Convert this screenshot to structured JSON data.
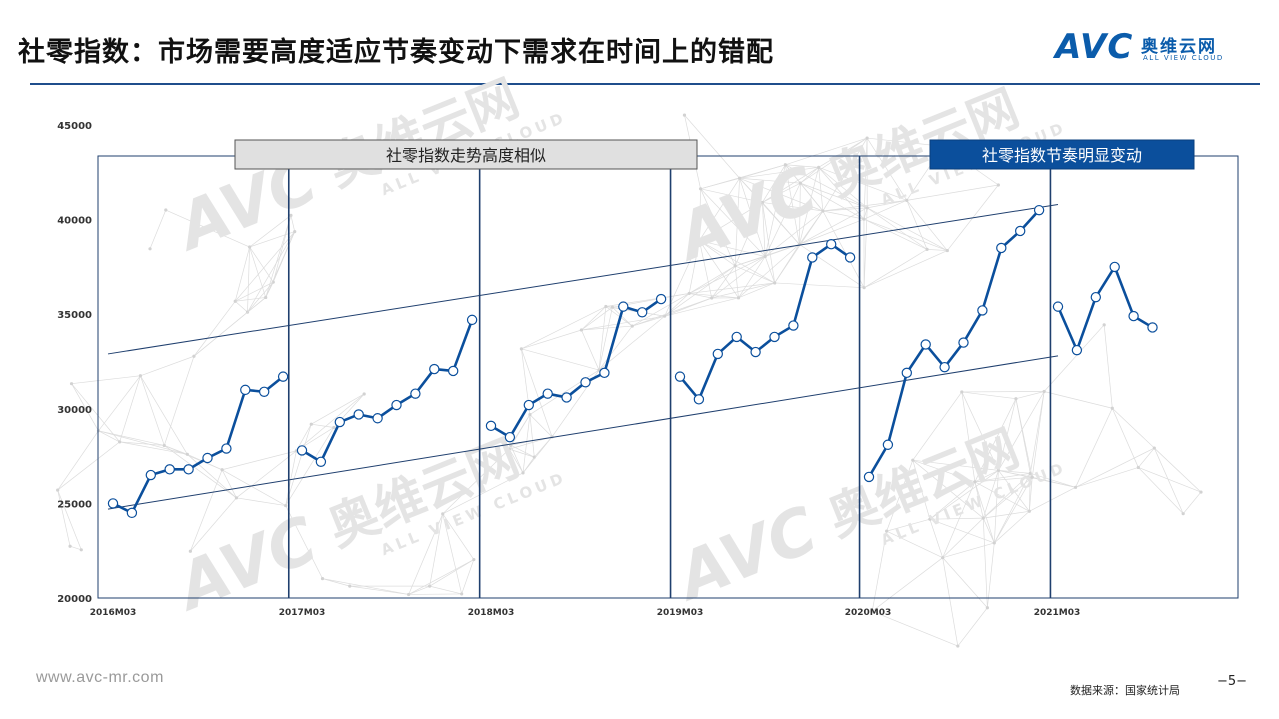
{
  "header": {
    "title": "社零指数：市场需要高度适应节奏变动下需求在时间上的错配",
    "logo_main": "AVC",
    "logo_cn": "奥维云网",
    "logo_en": "ALL VIEW CLOUD"
  },
  "watermark": {
    "main": "AVC",
    "cn": "奥维云网",
    "en": "ALL VIEW CLOUD"
  },
  "footer": {
    "url": "www.avc-mr.com",
    "source": "数据来源：国家统计局",
    "page": "−5−"
  },
  "colors": {
    "line": "#0b4f9c",
    "frame": "#1f3f6e",
    "accent_box": "#0b4f9c"
  },
  "chart_data": {
    "type": "line",
    "title": "",
    "xlabel": "",
    "ylabel": "",
    "ylim": [
      20000,
      45000
    ],
    "yticks": [
      20000,
      25000,
      30000,
      35000,
      40000,
      45000
    ],
    "xtick_labels": [
      "2016M03",
      "2017M03",
      "2018M03",
      "2019M03",
      "2020M03",
      "2021M03"
    ],
    "grid": false,
    "legend": "none",
    "annotations": [
      {
        "text": "社零指数走势高度相似",
        "style": "gray"
      },
      {
        "text": "社零指数节奏明显变动",
        "style": "blue"
      }
    ],
    "segments": [
      {
        "year": "2016",
        "values": [
          25000,
          24500,
          26500,
          26800,
          26800,
          27400,
          27900,
          31000,
          30900,
          31700
        ]
      },
      {
        "year": "2017",
        "values": [
          27800,
          27200,
          29300,
          29700,
          29500,
          30200,
          30800,
          32100,
          32000,
          34700
        ]
      },
      {
        "year": "2018",
        "values": [
          29100,
          28500,
          30200,
          30800,
          30600,
          31400,
          31900,
          35400,
          35100,
          35800
        ]
      },
      {
        "year": "2019",
        "values": [
          31700,
          30500,
          32900,
          33800,
          33000,
          33800,
          34400,
          38000,
          38700,
          38000
        ]
      },
      {
        "year": "2020",
        "values": [
          26400,
          28100,
          31900,
          33400,
          32200,
          33500,
          35200,
          38500,
          39400,
          40500
        ]
      },
      {
        "year": "2021",
        "values": [
          35400,
          33100,
          35900,
          37500,
          34900,
          34300
        ]
      }
    ],
    "trend_lines": [
      {
        "name": "upper",
        "start": {
          "month": 0,
          "value": 32900
        },
        "end": {
          "month": 50,
          "value": 40800
        }
      },
      {
        "name": "lower",
        "start": {
          "month": 0,
          "value": 24700
        },
        "end": {
          "month": 50,
          "value": 32800
        }
      }
    ]
  }
}
